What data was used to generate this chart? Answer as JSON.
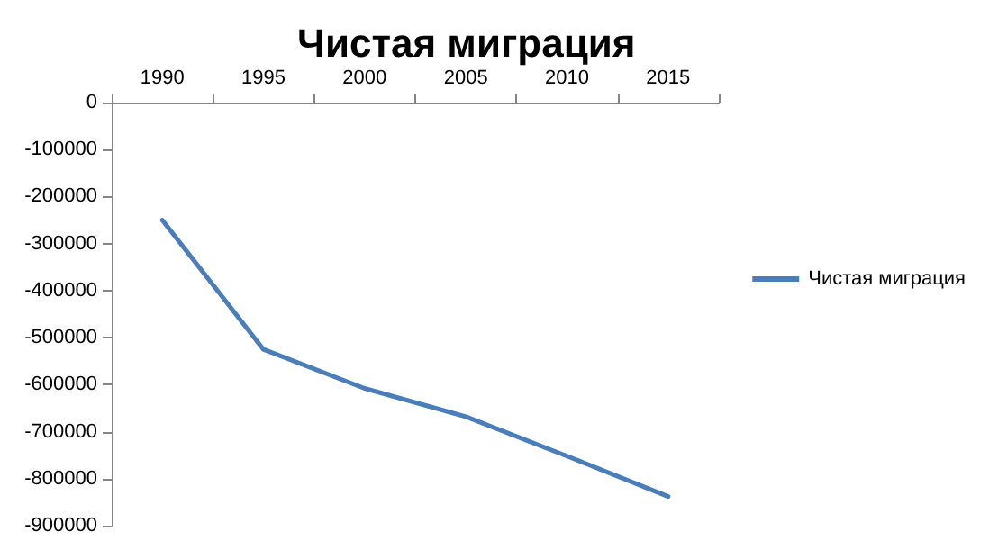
{
  "chart_data": {
    "type": "line",
    "title": "Чистая миграция",
    "categories": [
      "1990",
      "1995",
      "2000",
      "2005",
      "2010",
      "2015"
    ],
    "series": [
      {
        "name": "Чистая миграция",
        "color": "#4a7ebb",
        "values": [
          -250000,
          -525000,
          -608000,
          -668000,
          -752000,
          -838000
        ]
      }
    ],
    "ylim": [
      -900000,
      0
    ],
    "yticks": [
      -900000,
      -800000,
      -700000,
      -600000,
      -500000,
      -400000,
      -300000,
      -200000,
      -100000,
      0
    ],
    "grid": false,
    "legend": "right",
    "marker": "none"
  }
}
